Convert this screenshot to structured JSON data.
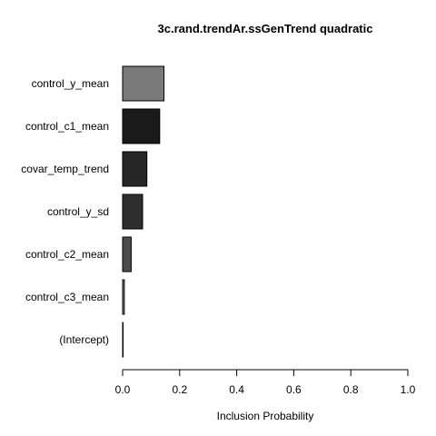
{
  "chart_data": {
    "type": "bar",
    "orientation": "horizontal",
    "title": "3c.rand.trendAr.ssGenTrend quadratic",
    "xlabel": "Inclusion Probability",
    "ylabel": "",
    "xlim": [
      0,
      1
    ],
    "x_ticks": [
      "0.0",
      "0.2",
      "0.4",
      "0.6",
      "0.8",
      "1.0"
    ],
    "grid": false,
    "categories": [
      "control_y_mean",
      "control_c1_mean",
      "covar_temp_trend",
      "control_y_sd",
      "control_c2_mean",
      "control_c3_mean",
      "(Intercept)"
    ],
    "values": [
      0.145,
      0.13,
      0.085,
      0.07,
      0.03,
      0.006,
      0.001
    ],
    "colors": [
      "#7a7a7a",
      "#1a1a1a",
      "#262626",
      "#2e2e2e",
      "#4d4d4d",
      "#8c8c8c",
      "#ffffff"
    ]
  }
}
